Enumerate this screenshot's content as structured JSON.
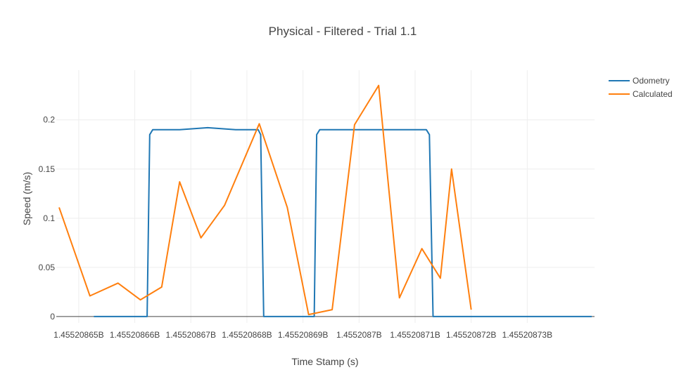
{
  "chart_data": {
    "type": "line",
    "title": "Physical - Filtered - Trial 1.1",
    "xlabel": "Time Stamp (s)",
    "ylabel": "Speed (m/s)",
    "xlim": [
      1.455208646,
      1.455208742
    ],
    "ylim": [
      -0.0065,
      0.2505
    ],
    "x_ticks": [
      {
        "value": 1.45520865,
        "label": "1.45520865B"
      },
      {
        "value": 1.45520866,
        "label": "1.45520866B"
      },
      {
        "value": 1.45520867,
        "label": "1.45520867B"
      },
      {
        "value": 1.45520868,
        "label": "1.45520868B"
      },
      {
        "value": 1.45520869,
        "label": "1.45520869B"
      },
      {
        "value": 1.4552087,
        "label": "1.4552087B"
      },
      {
        "value": 1.45520871,
        "label": "1.45520871B"
      },
      {
        "value": 1.45520872,
        "label": "1.45520872B"
      },
      {
        "value": 1.45520873,
        "label": "1.45520873B"
      }
    ],
    "y_ticks": [
      {
        "value": 0,
        "label": "0"
      },
      {
        "value": 0.05,
        "label": "0.05"
      },
      {
        "value": 0.1,
        "label": "0.1"
      },
      {
        "value": 0.15,
        "label": "0.15"
      },
      {
        "value": 0.2,
        "label": "0.2"
      }
    ],
    "grid": true,
    "legend_position": "top-right",
    "series": [
      {
        "name": "Odometry",
        "color": "#1f77b4",
        "x": [
          1.4552086527,
          1.4552086575,
          1.4552086622,
          1.45520866267,
          1.4552086632,
          1.455208668,
          1.455208673,
          1.455208678,
          1.455208682,
          1.45520868245,
          1.455208683,
          1.455208688,
          1.455208692,
          1.45520869245,
          1.455208693,
          1.455208698,
          1.455208703,
          1.455208708,
          1.455208712,
          1.45520871255,
          1.4552087132,
          1.45520872,
          1.45520873,
          1.4552087415
        ],
        "values": [
          0,
          0,
          0,
          0.185,
          0.19,
          0.19,
          0.192,
          0.19,
          0.19,
          0.185,
          0,
          0,
          0,
          0.185,
          0.19,
          0.19,
          0.19,
          0.19,
          0.19,
          0.185,
          0,
          0,
          0,
          0
        ]
      },
      {
        "name": "Calculated",
        "color": "#ff7f0e",
        "x": [
          1.4552086465,
          1.455208652,
          1.455208657,
          1.455208661,
          1.4552086648,
          1.455208668,
          1.4552086718,
          1.455208676,
          1.4552086822,
          1.4552086872,
          1.455208691,
          1.4552086952,
          1.4552086992,
          1.4552087035,
          1.4552087072,
          1.4552087112,
          1.4552087145,
          1.4552087165,
          1.45520872
        ],
        "values": [
          0.111,
          0.021,
          0.034,
          0.017,
          0.03,
          0.137,
          0.08,
          0.113,
          0.196,
          0.111,
          0.002,
          0.007,
          0.195,
          0.235,
          0.019,
          0.069,
          0.039,
          0.15,
          0.007
        ]
      }
    ]
  }
}
